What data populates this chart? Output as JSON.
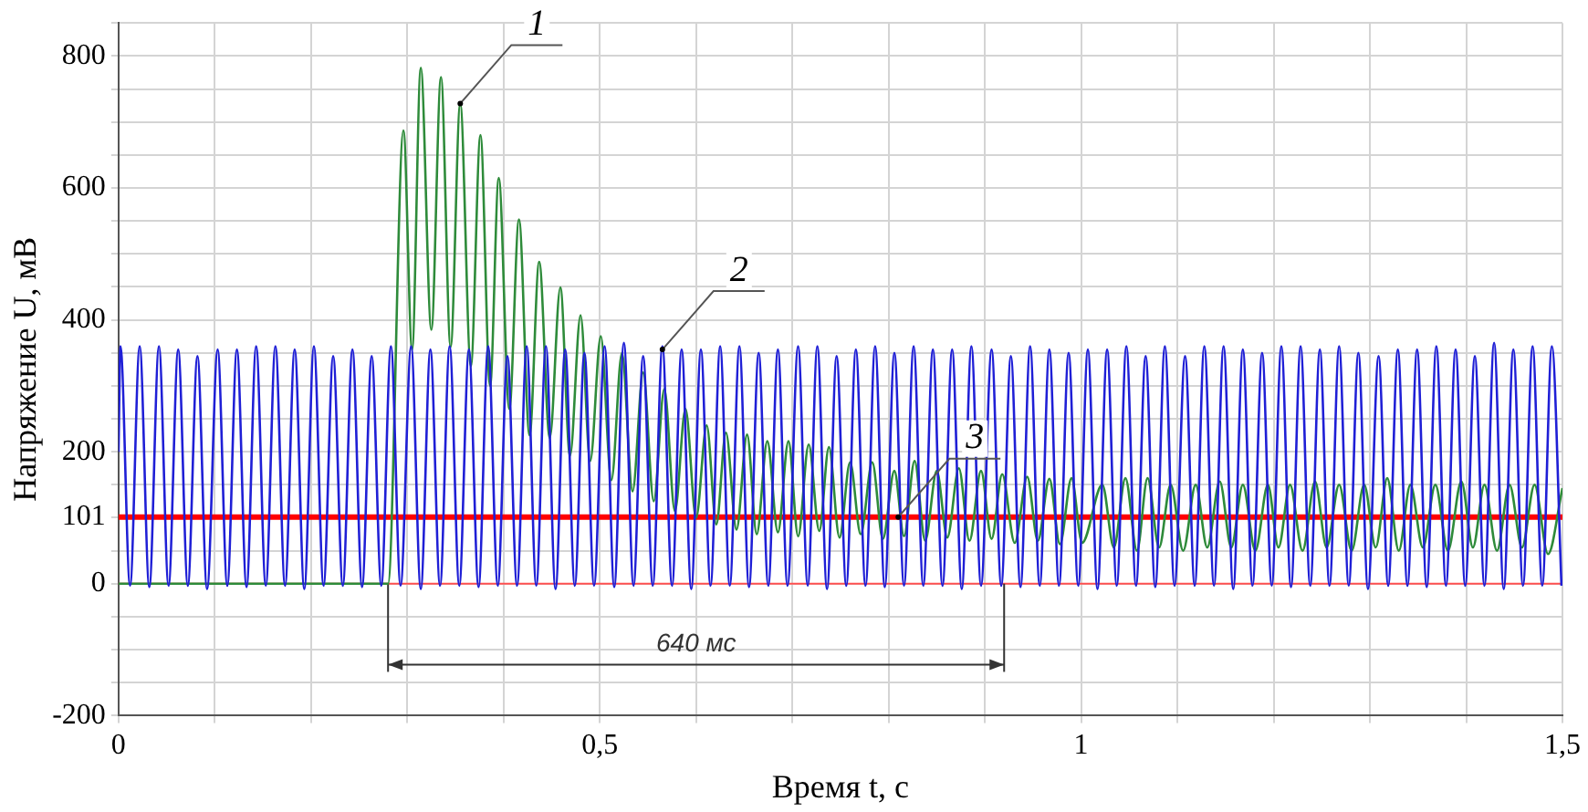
{
  "chart_data": {
    "type": "line",
    "xlabel": "Время t, с",
    "ylabel": "Напряжение U, мВ",
    "xlim": [
      0,
      1.5
    ],
    "ylim": [
      -200,
      850
    ],
    "xticks": [
      0,
      {
        "value": 0.1,
        "label": null
      },
      {
        "value": 0.2,
        "label": null
      },
      {
        "value": 0.3,
        "label": null
      },
      {
        "value": 0.4,
        "label": null
      },
      {
        "value": 0.5,
        "label": "0,5"
      },
      {
        "value": 0.6,
        "label": null
      },
      {
        "value": 0.7,
        "label": null
      },
      {
        "value": 0.8,
        "label": null
      },
      {
        "value": 0.9,
        "label": null
      },
      1,
      {
        "value": 1.1,
        "label": null
      },
      {
        "value": 1.2,
        "label": null
      },
      {
        "value": 1.3,
        "label": null
      },
      {
        "value": 1.4,
        "label": null
      },
      {
        "value": 1.5,
        "label": "1,5"
      }
    ],
    "yticks": [
      -200,
      {
        "value": -150,
        "label": null
      },
      {
        "value": -100,
        "label": null
      },
      {
        "value": -50,
        "label": null
      },
      0,
      {
        "value": 50,
        "label": null
      },
      101,
      {
        "value": 150,
        "label": null
      },
      200,
      {
        "value": 250,
        "label": null
      },
      {
        "value": 300,
        "label": null
      },
      {
        "value": 350,
        "label": null
      },
      400,
      {
        "value": 450,
        "label": null
      },
      {
        "value": 500,
        "label": null
      },
      {
        "value": 550,
        "label": null
      },
      600,
      {
        "value": 650,
        "label": null
      },
      {
        "value": 700,
        "label": null
      },
      {
        "value": 750,
        "label": null
      },
      800,
      {
        "value": 850,
        "label": null
      }
    ],
    "grid": true,
    "series": [
      {
        "color": "#1f1fd6",
        "x": [
          0,
          0.002,
          0.012,
          0.022,
          0.032,
          0.042,
          0.052,
          0.062,
          0.072,
          0.082,
          0.092,
          0.103,
          0.113,
          0.123,
          0.133,
          0.143,
          0.153,
          0.163,
          0.173,
          0.183,
          0.193,
          0.203,
          0.213,
          0.223,
          0.233,
          0.243,
          0.253,
          0.263,
          0.273,
          0.283,
          0.293,
          0.304,
          0.314,
          0.324,
          0.334,
          0.344,
          0.354,
          0.364,
          0.374,
          0.384,
          0.394,
          0.404,
          0.414,
          0.424,
          0.434,
          0.444,
          0.454,
          0.464,
          0.474,
          0.484,
          0.494,
          0.505,
          0.515,
          0.525,
          0.535,
          0.545,
          0.555,
          0.565,
          0.575,
          0.585,
          0.595,
          0.605,
          0.615,
          0.625,
          0.635,
          0.645,
          0.655,
          0.665,
          0.675,
          0.685,
          0.695,
          0.706,
          0.716,
          0.726,
          0.736,
          0.746,
          0.756,
          0.766,
          0.776,
          0.786,
          0.796,
          0.806,
          0.816,
          0.826,
          0.836,
          0.846,
          0.856,
          0.866,
          0.876,
          0.886,
          0.896,
          0.907,
          0.917,
          0.927,
          0.937,
          0.947,
          0.957,
          0.967,
          0.977,
          0.987,
          0.997,
          1.007,
          1.017,
          1.027,
          1.037,
          1.047,
          1.057,
          1.067,
          1.077,
          1.087,
          1.097,
          1.108,
          1.118,
          1.128,
          1.138,
          1.148,
          1.158,
          1.168,
          1.178,
          1.188,
          1.198,
          1.208,
          1.218,
          1.228,
          1.238,
          1.248,
          1.258,
          1.268,
          1.278,
          1.288,
          1.298,
          1.309,
          1.319,
          1.329,
          1.339,
          1.349,
          1.359,
          1.369,
          1.379,
          1.389,
          1.399,
          1.409,
          1.419,
          1.429,
          1.439,
          1.449,
          1.459,
          1.469,
          1.479,
          1.489,
          1.499
        ],
        "values": [
          200,
          360,
          -3,
          360,
          -5,
          360,
          -3,
          355,
          -3,
          345,
          -8,
          355,
          -3,
          355,
          -5,
          360,
          -3,
          360,
          -3,
          355,
          -8,
          360,
          -3,
          345,
          -3,
          355,
          -5,
          345,
          -3,
          360,
          -3,
          360,
          -8,
          355,
          -3,
          360,
          -3,
          355,
          -5,
          360,
          -3,
          345,
          -3,
          360,
          -3,
          360,
          -8,
          355,
          -3,
          350,
          -3,
          360,
          -5,
          365,
          -3,
          345,
          -3,
          360,
          -3,
          355,
          -8,
          355,
          -3,
          360,
          -3,
          360,
          -5,
          350,
          -3,
          355,
          -3,
          360,
          -3,
          360,
          -8,
          345,
          -3,
          355,
          -3,
          360,
          -5,
          350,
          -3,
          360,
          -3,
          355,
          -3,
          355,
          -8,
          360,
          -3,
          355,
          -3,
          345,
          -5,
          360,
          -3,
          355,
          -3,
          350,
          -3,
          355,
          -8,
          355,
          -3,
          360,
          -3,
          345,
          -5,
          360,
          -3,
          345,
          -3,
          360,
          -3,
          360,
          -8,
          355,
          -3,
          350,
          -3,
          360,
          -5,
          360,
          -3,
          355,
          -3,
          360,
          -3,
          350,
          -8,
          345,
          -3,
          355,
          -3,
          355,
          -5,
          360,
          -3,
          355,
          -3,
          345,
          -3,
          365,
          -8,
          355,
          -3,
          360,
          -3,
          360,
          -3
        ]
      },
      {
        "color": "#2e8b3a",
        "x": [
          0,
          0.1,
          0.2,
          0.28,
          0.296,
          0.305,
          0.314,
          0.325,
          0.335,
          0.345,
          0.355,
          0.366,
          0.376,
          0.386,
          0.395,
          0.406,
          0.416,
          0.427,
          0.437,
          0.448,
          0.459,
          0.469,
          0.48,
          0.49,
          0.501,
          0.512,
          0.523,
          0.534,
          0.545,
          0.556,
          0.567,
          0.578,
          0.589,
          0.6,
          0.611,
          0.621,
          0.631,
          0.642,
          0.653,
          0.663,
          0.674,
          0.685,
          0.696,
          0.706,
          0.717,
          0.728,
          0.738,
          0.749,
          0.76,
          0.771,
          0.783,
          0.794,
          0.806,
          0.816,
          0.827,
          0.838,
          0.85,
          0.861,
          0.873,
          0.884,
          0.896,
          0.907,
          0.918,
          0.931,
          0.944,
          0.955,
          0.967,
          0.978,
          0.99,
          1.001,
          1.022,
          1.034,
          1.046,
          1.058,
          1.069,
          1.081,
          1.093,
          1.106,
          1.119,
          1.131,
          1.144,
          1.156,
          1.168,
          1.181,
          1.194,
          1.205,
          1.217,
          1.23,
          1.243,
          1.255,
          1.268,
          1.281,
          1.294,
          1.306,
          1.318,
          1.33,
          1.342,
          1.355,
          1.368,
          1.381,
          1.395,
          1.407,
          1.419,
          1.432,
          1.445,
          1.458,
          1.471,
          1.485,
          1.5
        ],
        "values": [
          0,
          0,
          0,
          0,
          687,
          355,
          782,
          385,
          768,
          359,
          728,
          330,
          680,
          300,
          615,
          265,
          552,
          225,
          488,
          221,
          449,
          194,
          407,
          186,
          375,
          157,
          350,
          140,
          320,
          125,
          295,
          110,
          265,
          100,
          240,
          90,
          229,
          82,
          226,
          75,
          216,
          78,
          216,
          72,
          211,
          80,
          207,
          70,
          184,
          75,
          184,
          68,
          171,
          72,
          186,
          65,
          171,
          70,
          175,
          65,
          171,
          68,
          166,
          62,
          162,
          65,
          159,
          60,
          160,
          62,
          150,
          55,
          160,
          50,
          160,
          55,
          150,
          50,
          150,
          55,
          155,
          55,
          150,
          50,
          150,
          55,
          150,
          50,
          155,
          55,
          150,
          50,
          150,
          55,
          160,
          50,
          150,
          55,
          150,
          50,
          155,
          55,
          150,
          50,
          150,
          55,
          150,
          45,
          145
        ]
      },
      {
        "color": "#ff0000",
        "x": [
          0,
          1.5
        ],
        "values": [
          101,
          101
        ]
      }
    ],
    "ref_lines": [
      {
        "axis": "y",
        "value": 0,
        "color": "#ff5050"
      },
      {
        "axis": "x",
        "value": 0.28,
        "color": "#333333"
      },
      {
        "axis": "x",
        "value": 0.92,
        "color": "#333333"
      }
    ],
    "annotations": [
      {
        "text": "1",
        "x": 0.355,
        "y": 728
      },
      {
        "text": "2",
        "x": 0.565,
        "y": 355
      },
      {
        "text": "3",
        "x": 0.81,
        "y": 101
      },
      "640 мс"
    ]
  }
}
